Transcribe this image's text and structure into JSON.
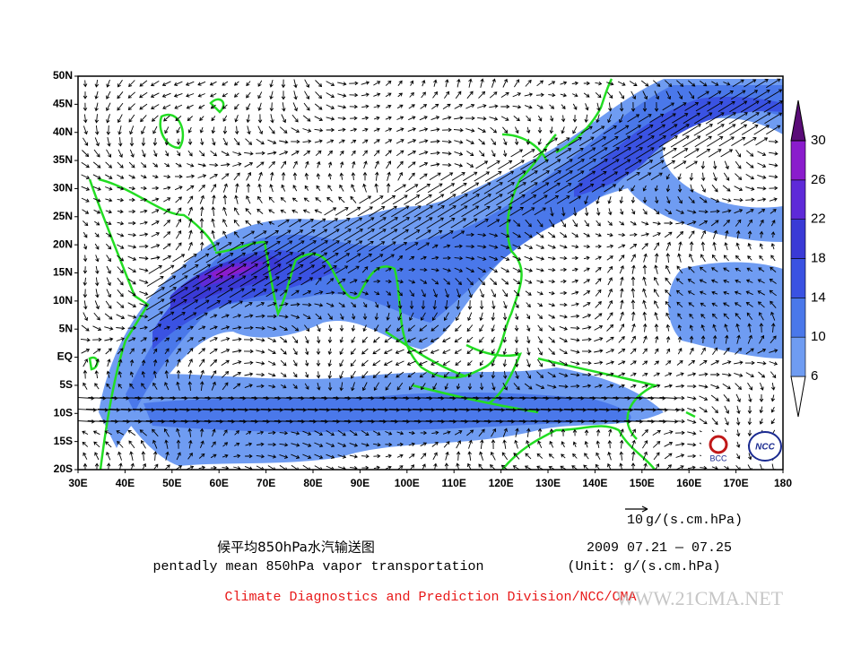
{
  "map": {
    "lat_labels": [
      "50N",
      "45N",
      "40N",
      "35N",
      "30N",
      "25N",
      "20N",
      "15N",
      "10N",
      "5N",
      "EQ",
      "5S",
      "10S",
      "15S",
      "20S"
    ],
    "lon_labels": [
      "30E",
      "40E",
      "50E",
      "60E",
      "70E",
      "80E",
      "90E",
      "100E",
      "110E",
      "120E",
      "130E",
      "140E",
      "150E",
      "160E",
      "170E",
      "180"
    ],
    "logos": [
      "BCC",
      "NCC"
    ]
  },
  "colorbar": {
    "levels": [
      6,
      10,
      14,
      18,
      22,
      26,
      30
    ],
    "colors": [
      "#ffffff",
      "#6f9cf2",
      "#4a78ea",
      "#3a52e2",
      "#3a3ad6",
      "#5e2ad8",
      "#8a1ccc",
      "#5a0c78"
    ]
  },
  "reference_vector": {
    "magnitude": "10",
    "unit": "g/(s.cm.hPa)"
  },
  "title_cn": "候平均850hPa水汽输送图",
  "title_en": "pentadly mean 850hPa vapor transportation",
  "date": "2009  07.21 — 07.25",
  "unit_note": "(Unit: g/(s.cm.hPa)",
  "credit": "Climate Diagnostics and Prediction Division/NCC/CMA",
  "watermark": "WWW.21CMA.NET"
}
